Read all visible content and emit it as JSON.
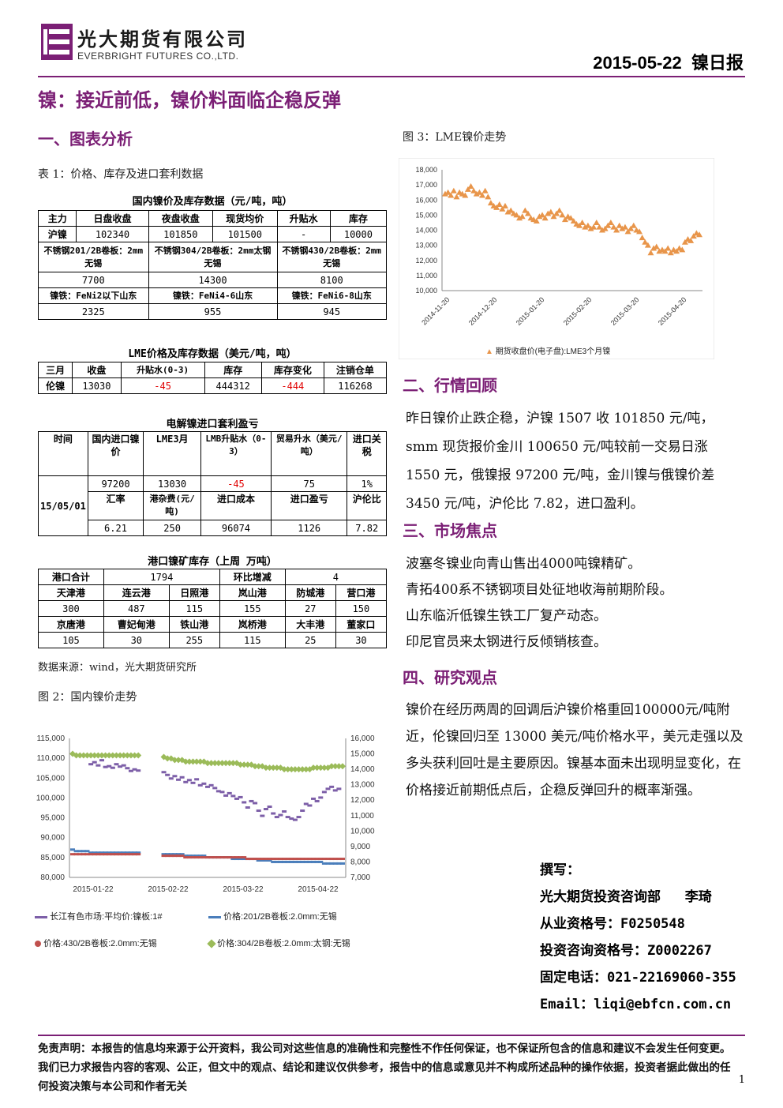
{
  "header": {
    "company_cn": "光大期货有限公司",
    "company_en": "EVERBRIGHT FUTURES CO.,LTD.",
    "date_title": "2015-05-22  镍日报"
  },
  "doc_title": "镍：接近前低，镍价料面临企稳反弹",
  "section1": "一、图表分析",
  "table1_caption": "表 1：价格、库存及进口套利数据",
  "t_domestic": {
    "title": "国内镍价及库存数据（元/吨，吨）",
    "headers": [
      "主力",
      "日盘收盘",
      "夜盘收盘",
      "现货均价",
      "升贴水",
      "库存"
    ],
    "row1": [
      "沪镍",
      "102340",
      "101850",
      "101500",
      "-",
      "10000"
    ],
    "ss_labels": [
      "不锈钢201/2B卷板：2mm无锡",
      "不锈钢304/2B卷板：2mm太钢无锡",
      "不锈钢430/2B卷板：2mm无锡"
    ],
    "ss_values": [
      "7700",
      "14300",
      "8100"
    ],
    "fe_labels": [
      "镍铁：FeNi2以下山东",
      "镍铁：FeNi4-6山东",
      "镍铁：FeNi6-8山东"
    ],
    "fe_values": [
      "2325",
      "955",
      "945"
    ]
  },
  "t_lme": {
    "title": "LME价格及库存数据（美元/吨，吨）",
    "headers": [
      "三月",
      "收盘",
      "升贴水(0-3)",
      "库存",
      "库存变化",
      "注销仓单"
    ],
    "row": [
      "伦镍",
      "13030",
      "-45",
      "444312",
      "-444",
      "116268"
    ]
  },
  "t_arb": {
    "title": "电解镍进口套利盈亏",
    "headers": [
      "时间",
      "国内进口镍价",
      "LME3月",
      "LMB升贴水（0-3）",
      "贸易升水（美元/吨）",
      "进口关税"
    ],
    "date": "15/05/01",
    "row1": [
      "97200",
      "13030",
      "-45",
      "75",
      "1%"
    ],
    "headers2": [
      "汇率",
      "港杂费(元/吨)",
      "进口成本",
      "进口盈亏",
      "沪伦比"
    ],
    "row2": [
      "6.21",
      "250",
      "96074",
      "1126",
      "7.82"
    ]
  },
  "t_port": {
    "title": "港口镍矿库存（上周 万吨）",
    "r1": [
      "港口合计",
      "1794",
      "环比增减",
      "4"
    ],
    "h2": [
      "天津港",
      "连云港",
      "日照港",
      "岚山港",
      "防城港",
      "营口港"
    ],
    "v2": [
      "300",
      "487",
      "115",
      "155",
      "27",
      "150"
    ],
    "h3": [
      "京唐港",
      "曹妃甸港",
      "铁山港",
      "岚桥港",
      "大丰港",
      "董家口"
    ],
    "v3": [
      "105",
      "30",
      "255",
      "115",
      "25",
      "30"
    ]
  },
  "source_note": "数据来源：wind，光大期货研究所",
  "fig2_caption": "图 2：国内镍价走势",
  "fig3_caption": "图 3：LME镍价走势",
  "section2": "二、行情回顾",
  "review_text": "昨日镍价止跌企稳，沪镍 1507 收 101850 元/吨，smm 现货报价金川 100650 元/吨较前一交易日涨 1550 元，俄镍报 97200 元/吨，金川镍与俄镍价差 3450 元/吨，沪伦比 7.82，进口盈利。",
  "section3": "三、市场焦点",
  "focus": [
    "波塞冬镍业向青山售出4000吨镍精矿。",
    "青拓400系不锈钢项目处征地收海前期阶段。",
    "山东临沂低镍生铁工厂复产动态。",
    "印尼官员来太钢进行反倾销核查。"
  ],
  "section4": "四、研究观点",
  "view_text": "镍价在经历两周的回调后沪镍价格重回100000元/吨附近，伦镍回归至 13000 美元/吨价格水平，美元走强以及多头获利回吐是主要原因。镍基本面未出现明显变化，在价格接近前期低点后，企稳反弹回升的概率渐强。",
  "author": {
    "l1": "撰写：",
    "l2": "光大期货投资咨询部   李琦",
    "l3": "从业资格号：F0250548",
    "l4": "投资咨询资格号：Z0002267",
    "l5": "固定电话：021-22169060-355",
    "l6": "Email：liqi@ebfcn.com.cn"
  },
  "disclaimer": "免责声明：本报告的信息均来源于公开资料，我公司对这些信息的准确性和完整性不作任何保证，也不保证所包含的信息和建议不会发生任何变更。我们已力求报告内容的客观、公正，但文中的观点、结论和建议仅供参考，报告中的信息或意见并不构成所述品种的操作依据，投资者据此做出的任何投资决策与本公司和作者无关",
  "page_number": "1",
  "colors": {
    "accent": "#7b1f75",
    "fig3_marker": "#e8954a"
  },
  "chart_data": [
    {
      "type": "scatter",
      "name": "fig3",
      "ylim": [
        10000,
        18000
      ],
      "yticks": [
        "10,000",
        "11,000",
        "12,000",
        "13,000",
        "14,000",
        "15,000",
        "16,000",
        "17,000",
        "18,000"
      ],
      "xticks": [
        "2014-11-20",
        "2014-12-20",
        "2015-01-20",
        "2015-02-20",
        "2015-03-20",
        "2015-04-20"
      ],
      "series": [
        {
          "name": "期货收盘价(电子盘):LME3个月镍",
          "values": [
            16400,
            16500,
            16300,
            16600,
            16200,
            16500,
            16400,
            16300,
            16700,
            16900,
            16600,
            16400,
            16500,
            16300,
            16600,
            16200,
            15800,
            15600,
            15500,
            15700,
            15400,
            15600,
            15200,
            15300,
            15100,
            15000,
            14800,
            14900,
            15300,
            15100,
            14800,
            14700,
            14600,
            14900,
            15000,
            14800,
            15100,
            15200,
            14900,
            15100,
            15300,
            15000,
            14700,
            14900,
            14800,
            14600,
            14400,
            14300,
            14500,
            14200,
            14300,
            14100,
            14200,
            14500,
            14200,
            14000,
            14100,
            14300,
            14500,
            14200,
            14000,
            14300,
            14100,
            14200,
            13900,
            14100,
            14300,
            14000,
            13900,
            13500,
            13200,
            13000,
            12500,
            12800,
            12900,
            12600,
            12700,
            12600,
            12800,
            12500,
            12700,
            12600,
            12800,
            12700,
            13200,
            13400,
            13300,
            13600,
            13800,
            13700
          ]
        }
      ]
    },
    {
      "type": "line",
      "name": "fig2",
      "ylim_left": [
        80000,
        115000
      ],
      "ylim_right": [
        7000,
        16000
      ],
      "yticks_left": [
        "115,000",
        "110,000",
        "105,000",
        "100,000",
        "95,000",
        "90,000",
        "85,000",
        "80,000"
      ],
      "yticks_right": [
        "16,000",
        "15,000",
        "14,000",
        "13,000",
        "12,000",
        "11,000",
        "10,000",
        "9,000",
        "8,000",
        "7,000"
      ],
      "xticks": [
        "2015-01-22",
        "2015-02-22",
        "2015-03-22",
        "2015-04-22"
      ],
      "series": [
        {
          "name": "长江有色市场:平均价:镍板:1#",
          "axis": "left",
          "values": [
            null,
            null,
            null,
            null,
            null,
            108500,
            109000,
            108200,
            109500,
            107800,
            108000,
            107600,
            108500,
            107900,
            108200,
            107500,
            106800,
            107200,
            106900,
            null,
            null,
            null,
            null,
            null,
            null,
            106500,
            105800,
            104900,
            105500,
            104600,
            105200,
            104000,
            104500,
            103800,
            104700,
            103200,
            103600,
            102800,
            103200,
            102500,
            101700,
            101500,
            100600,
            101200,
            100500,
            99800,
            100200,
            98900,
            97600,
            99200,
            98700,
            96800,
            95500,
            97200,
            97800,
            96100,
            95200,
            95700,
            96600,
            95200,
            94800,
            94500,
            95200,
            96800,
            98500,
            98100,
            99800,
            99200,
            100100,
            101500,
            102300,
            102800,
            101900,
            102300,
            null
          ]
        },
        {
          "name": "价格:201/2B卷板:2.0mm:无锡",
          "axis": "right",
          "values": [
            8800,
            8700,
            8700,
            8700,
            8700,
            8600,
            8600,
            8600,
            8600,
            8600,
            8600,
            8600,
            8600,
            8600,
            8600,
            8600,
            8600,
            8600,
            8600,
            null,
            null,
            null,
            null,
            null,
            null,
            8500,
            8500,
            8500,
            8500,
            8500,
            8500,
            8400,
            8400,
            8400,
            8400,
            8400,
            8400,
            8300,
            8300,
            8300,
            8300,
            8300,
            8300,
            8300,
            8200,
            8200,
            8200,
            8200,
            8200,
            8200,
            8200,
            8100,
            8100,
            8100,
            8100,
            8000,
            8000,
            8000,
            8000,
            8000,
            8000,
            8000,
            8000,
            8000,
            8000,
            8000,
            8000,
            8000,
            8000,
            7900,
            7900,
            7900,
            7900,
            7900,
            7900
          ]
        },
        {
          "name": "价格:430/2B卷板:2.0mm:无锡",
          "axis": "right",
          "values": [
            8500,
            8500,
            8500,
            8500,
            8500,
            8500,
            8500,
            8500,
            8500,
            8500,
            8500,
            8500,
            8500,
            8500,
            8500,
            8500,
            8500,
            8500,
            8500,
            null,
            null,
            null,
            null,
            null,
            null,
            8400,
            8400,
            8400,
            8400,
            8400,
            8400,
            8300,
            8300,
            8300,
            8300,
            8300,
            8300,
            8300,
            8300,
            8300,
            8300,
            8300,
            8300,
            8300,
            8300,
            8300,
            8300,
            8300,
            8200,
            8200,
            8200,
            8200,
            8200,
            8200,
            8200,
            8200,
            8200,
            8200,
            8200,
            8200,
            8200,
            8200,
            8200,
            8200,
            8200,
            8200,
            8200,
            8200,
            8200,
            8200,
            8200,
            8200,
            8200,
            8200,
            8200
          ]
        },
        {
          "name": "价格:304/2B卷板:2.0mm:太钢:无锡",
          "axis": "right",
          "values": [
            15000,
            14900,
            14900,
            14900,
            14900,
            14900,
            14900,
            14900,
            14900,
            14900,
            14900,
            14900,
            14900,
            14900,
            14900,
            14900,
            14900,
            14900,
            14900,
            null,
            null,
            null,
            null,
            null,
            null,
            14800,
            14700,
            14700,
            14600,
            14600,
            14600,
            14500,
            14500,
            14500,
            14500,
            14500,
            14500,
            14400,
            14400,
            14400,
            14400,
            14400,
            14400,
            14400,
            14400,
            14400,
            14300,
            14300,
            14300,
            14300,
            14200,
            14200,
            14200,
            14100,
            14100,
            14100,
            14100,
            14100,
            14000,
            14000,
            14000,
            14000,
            14000,
            14000,
            14000,
            14000,
            14100,
            14100,
            14100,
            14100,
            14100,
            14200,
            14200,
            14200,
            14200
          ]
        }
      ]
    }
  ]
}
